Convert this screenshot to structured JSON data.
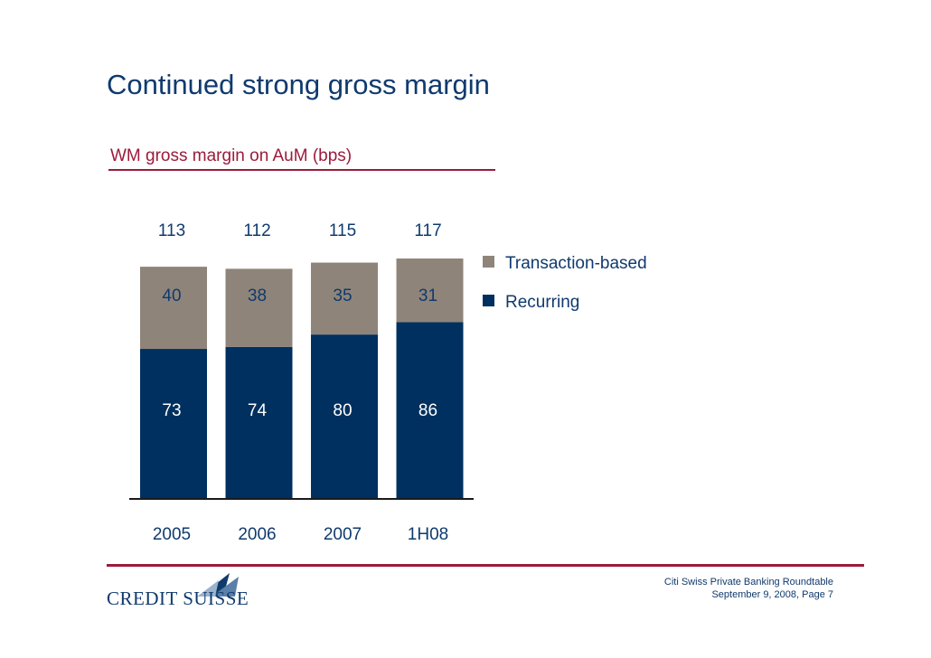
{
  "header": {
    "title": "Continued strong gross margin"
  },
  "subtitle": "WM gross margin on AuM (bps)",
  "chart_data": {
    "type": "bar",
    "stacked": true,
    "categories": [
      "2005",
      "2006",
      "2007",
      "1H08"
    ],
    "totals": [
      "113",
      "112",
      "115",
      "117"
    ],
    "series": [
      {
        "name": "Recurring",
        "values": [
          73,
          74,
          80,
          86
        ],
        "color": "#00305f"
      },
      {
        "name": "Transaction-based",
        "values": [
          40,
          38,
          35,
          31
        ],
        "color": "#8f847a"
      }
    ],
    "ylim": [
      0,
      117
    ],
    "title": "WM gross margin on AuM (bps)",
    "legend_position": "right"
  },
  "legend": {
    "items": [
      "Transaction-based",
      "Recurring"
    ]
  },
  "footer": {
    "logo_text": "CREDIT SUISSE",
    "event": "Citi Swiss Private Banking Roundtable",
    "date_page": "September 9, 2008, Page 7"
  }
}
